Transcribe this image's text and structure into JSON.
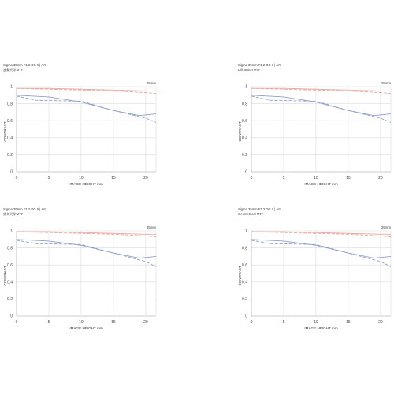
{
  "colors": {
    "sagittal_red": "#e8a8a0",
    "meridional_red": "#e8a8a0",
    "sagittal_blue": "#8e9fc9",
    "meridional_blue": "#8e9fc9",
    "grid": "#dcdcdc",
    "axis": "#9a9a9a"
  },
  "chart_data": [
    {
      "type": "line",
      "title": "Sigma 35mm F1.2 DG II | Art",
      "subtitle": "波動光学MTF",
      "focal_label": "35mm",
      "xlabel": "IMAGE HEIGHT  mm",
      "ylabel": "CONTRAST",
      "xlim": [
        0,
        21.6
      ],
      "ylim": [
        0,
        1
      ],
      "xticks": [
        "0",
        "5",
        "10",
        "15",
        "20"
      ],
      "yticks": [
        "0",
        "0.2",
        "0.4",
        "0.6",
        "0.8",
        "1"
      ],
      "grid": true,
      "series": [
        {
          "style": "solid-red",
          "x": [
            0,
            5,
            10,
            15,
            20,
            21.6
          ],
          "y": [
            0.98,
            0.98,
            0.97,
            0.96,
            0.95,
            0.95
          ]
        },
        {
          "style": "dashed-red",
          "x": [
            0,
            5,
            10,
            15,
            20,
            21.6
          ],
          "y": [
            0.98,
            0.97,
            0.96,
            0.95,
            0.93,
            0.92
          ]
        },
        {
          "style": "solid-blue",
          "x": [
            0,
            5,
            10,
            15,
            19,
            21.6
          ],
          "y": [
            0.9,
            0.88,
            0.82,
            0.72,
            0.66,
            0.68
          ]
        },
        {
          "style": "dashed-blue",
          "x": [
            0,
            3,
            10,
            15,
            20,
            21.6
          ],
          "y": [
            0.89,
            0.84,
            0.83,
            0.72,
            0.63,
            0.58
          ]
        }
      ]
    },
    {
      "type": "line",
      "title": "Sigma 35mm F1.2 DG II | Art",
      "subtitle": "Diffraction MTF",
      "focal_label": "35mm",
      "xlabel": "IMAGE HEIGHT  mm",
      "ylabel": "CONTRAST",
      "xlim": [
        0,
        21.6
      ],
      "ylim": [
        0,
        1
      ],
      "xticks": [
        "0",
        "5",
        "10",
        "15",
        "20"
      ],
      "yticks": [
        "0",
        "0.2",
        "0.4",
        "0.6",
        "0.8",
        "1"
      ],
      "grid": true,
      "series": [
        {
          "style": "solid-red",
          "x": [
            0,
            5,
            10,
            15,
            20,
            21.6
          ],
          "y": [
            0.98,
            0.98,
            0.97,
            0.96,
            0.95,
            0.95
          ]
        },
        {
          "style": "dashed-red",
          "x": [
            0,
            5,
            10,
            15,
            20,
            21.6
          ],
          "y": [
            0.98,
            0.97,
            0.96,
            0.95,
            0.93,
            0.92
          ]
        },
        {
          "style": "solid-blue",
          "x": [
            0,
            5,
            10,
            15,
            19,
            21.6
          ],
          "y": [
            0.9,
            0.88,
            0.82,
            0.72,
            0.66,
            0.68
          ]
        },
        {
          "style": "dashed-blue",
          "x": [
            0,
            3,
            10,
            15,
            20,
            21.6
          ],
          "y": [
            0.89,
            0.84,
            0.83,
            0.72,
            0.63,
            0.58
          ]
        }
      ]
    },
    {
      "type": "line",
      "title": "Sigma 35mm F1.2 DG II | Art",
      "subtitle": "幾何光学MTF",
      "focal_label": "35mm",
      "xlabel": "IMAGE HEIGHT  mm",
      "ylabel": "CONTRAST",
      "xlim": [
        0,
        21.6
      ],
      "ylim": [
        0,
        1
      ],
      "xticks": [
        "0",
        "5",
        "10",
        "15",
        "20"
      ],
      "yticks": [
        "0",
        "0.2",
        "0.4",
        "0.6",
        "0.8",
        "1"
      ],
      "grid": true,
      "series": [
        {
          "style": "solid-red",
          "x": [
            0,
            5,
            10,
            15,
            20,
            21.6
          ],
          "y": [
            0.99,
            0.99,
            0.98,
            0.97,
            0.96,
            0.96
          ]
        },
        {
          "style": "dashed-red",
          "x": [
            0,
            5,
            10,
            15,
            20,
            21.6
          ],
          "y": [
            0.99,
            0.98,
            0.97,
            0.96,
            0.94,
            0.93
          ]
        },
        {
          "style": "solid-blue",
          "x": [
            0,
            5,
            10,
            15,
            19,
            21.6
          ],
          "y": [
            0.9,
            0.88,
            0.83,
            0.74,
            0.68,
            0.7
          ]
        },
        {
          "style": "dashed-blue",
          "x": [
            0,
            3,
            10,
            15,
            20,
            21.6
          ],
          "y": [
            0.89,
            0.85,
            0.84,
            0.74,
            0.64,
            0.58
          ]
        }
      ]
    },
    {
      "type": "line",
      "title": "Sigma 35mm F1.2 DG II | Art",
      "subtitle": "Geometrical MTF",
      "focal_label": "35mm",
      "xlabel": "IMAGE HEIGHT  mm",
      "ylabel": "CONTRAST",
      "xlim": [
        0,
        21.6
      ],
      "ylim": [
        0,
        1
      ],
      "xticks": [
        "0",
        "5",
        "10",
        "15",
        "20"
      ],
      "yticks": [
        "0",
        "0.2",
        "0.4",
        "0.6",
        "0.8",
        "1"
      ],
      "grid": true,
      "series": [
        {
          "style": "solid-red",
          "x": [
            0,
            5,
            10,
            15,
            20,
            21.6
          ],
          "y": [
            0.99,
            0.99,
            0.98,
            0.97,
            0.96,
            0.96
          ]
        },
        {
          "style": "dashed-red",
          "x": [
            0,
            5,
            10,
            15,
            20,
            21.6
          ],
          "y": [
            0.99,
            0.98,
            0.97,
            0.96,
            0.94,
            0.93
          ]
        },
        {
          "style": "solid-blue",
          "x": [
            0,
            5,
            10,
            15,
            19,
            21.6
          ],
          "y": [
            0.9,
            0.88,
            0.83,
            0.74,
            0.68,
            0.7
          ]
        },
        {
          "style": "dashed-blue",
          "x": [
            0,
            3,
            10,
            15,
            20,
            21.6
          ],
          "y": [
            0.89,
            0.85,
            0.84,
            0.74,
            0.64,
            0.58
          ]
        }
      ]
    }
  ]
}
